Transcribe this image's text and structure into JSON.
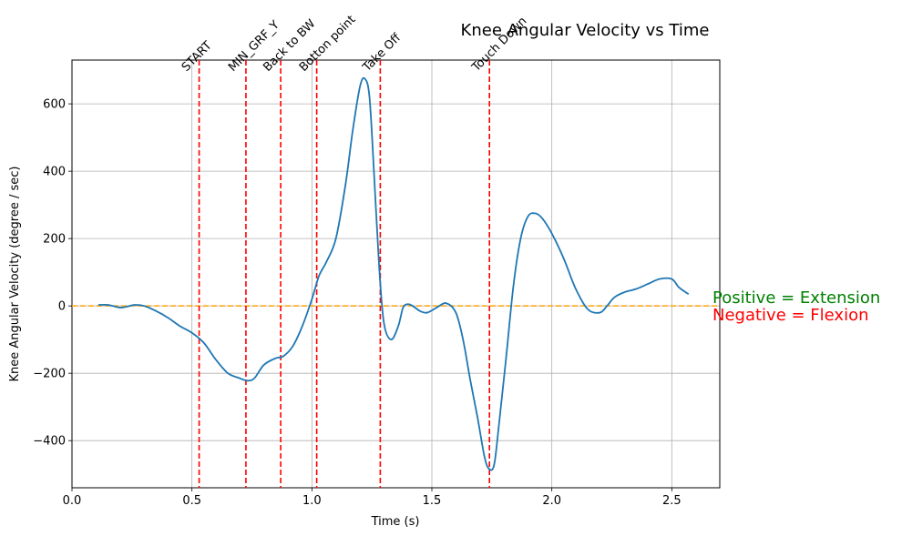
{
  "chart_data": {
    "type": "line",
    "title": "Knee Angular Velocity vs Time",
    "xlabel": "Time (s)",
    "ylabel": "Knee Angular Velocity (degree / sec)",
    "xlim": [
      0.0,
      2.7
    ],
    "ylim": [
      -540,
      730
    ],
    "grid": true,
    "x_ticks": [
      0.0,
      0.5,
      1.0,
      1.5,
      2.0,
      2.5
    ],
    "x_tick_labels": [
      "0.0",
      "0.5",
      "1.0",
      "1.5",
      "2.0",
      "2.5"
    ],
    "y_ticks": [
      -400,
      -200,
      0,
      200,
      400,
      600
    ],
    "y_tick_labels": [
      "−400",
      "−200",
      "0",
      "200",
      "400",
      "600"
    ],
    "series": [
      {
        "color": "#1f77b4",
        "x": [
          0.11,
          0.15,
          0.2,
          0.23,
          0.26,
          0.3,
          0.35,
          0.4,
          0.45,
          0.5,
          0.55,
          0.6,
          0.65,
          0.7,
          0.73,
          0.76,
          0.8,
          0.85,
          0.88,
          0.92,
          0.96,
          1.0,
          1.03,
          1.06,
          1.1,
          1.14,
          1.17,
          1.2,
          1.22,
          1.24,
          1.26,
          1.28,
          1.3,
          1.33,
          1.36,
          1.38,
          1.4,
          1.42,
          1.45,
          1.48,
          1.52,
          1.56,
          1.6,
          1.63,
          1.66,
          1.69,
          1.72,
          1.74,
          1.76,
          1.78,
          1.81,
          1.84,
          1.87,
          1.9,
          1.93,
          1.96,
          2.0,
          2.05,
          2.1,
          2.15,
          2.2,
          2.23,
          2.26,
          2.3,
          2.35,
          2.4,
          2.45,
          2.5,
          2.53,
          2.57
        ],
        "y": [
          3,
          3,
          -5,
          -2,
          3,
          0,
          -15,
          -35,
          -60,
          -80,
          -110,
          -160,
          -200,
          -215,
          -222,
          -215,
          -175,
          -155,
          -150,
          -120,
          -60,
          20,
          90,
          130,
          200,
          360,
          520,
          650,
          675,
          620,
          380,
          120,
          -50,
          -100,
          -60,
          -5,
          5,
          0,
          -15,
          -20,
          -5,
          8,
          -20,
          -100,
          -220,
          -330,
          -450,
          -485,
          -470,
          -350,
          -150,
          60,
          200,
          265,
          275,
          260,
          215,
          140,
          50,
          -10,
          -20,
          0,
          25,
          40,
          50,
          65,
          80,
          80,
          55,
          35
        ]
      }
    ],
    "events": [
      {
        "label": "START",
        "x": 0.53
      },
      {
        "label": "MIN_GRF_Y",
        "x": 0.725
      },
      {
        "label": "Back to BW",
        "x": 0.87
      },
      {
        "label": "Botton point",
        "x": 1.02
      },
      {
        "label": "Take Off",
        "x": 1.285
      },
      {
        "label": "Touch Down",
        "x": 1.74
      }
    ],
    "reference_line": {
      "y": 0,
      "color": "#ffa500",
      "style": "dashed"
    },
    "event_color": "#ff0000",
    "annotations": [
      {
        "text": "Positive = Extension",
        "color": "#008000"
      },
      {
        "text": "Negative = Flexion",
        "color": "#ff0000"
      }
    ]
  }
}
